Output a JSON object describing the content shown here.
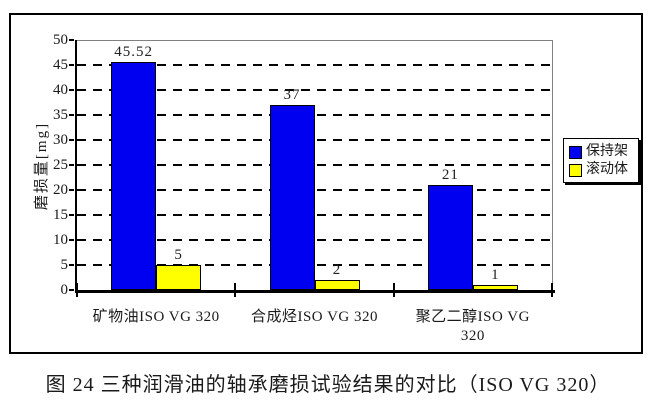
{
  "figure_caption": "图 24 三种润滑油的轴承磨损试验结果的对比（ISO VG 320）",
  "chart_data": {
    "type": "bar",
    "title": "",
    "xlabel": "",
    "ylabel": "磨损量[mg]",
    "ylim": [
      0,
      50
    ],
    "ytick_step": 5,
    "grid": "horizontal-dashed",
    "legend_position": "right",
    "categories": [
      "矿物油ISO VG 320",
      "合成烃ISO VG 320",
      "聚乙二醇ISO VG 320"
    ],
    "category_label_lines": [
      [
        "矿物油ISO VG 320"
      ],
      [
        "合成烃ISO VG 320"
      ],
      [
        "聚乙二醇ISO VG",
        "320"
      ]
    ],
    "series": [
      {
        "name": "保持架",
        "color": "#0000F0",
        "values": [
          45.52,
          37,
          21
        ],
        "value_labels": [
          "45.52",
          "37",
          "21"
        ]
      },
      {
        "name": "滚动体",
        "color": "#FFFF00",
        "values": [
          5,
          2,
          1
        ],
        "value_labels": [
          "5",
          "2",
          "1"
        ]
      }
    ]
  },
  "colors": {
    "frame_border": "#000000",
    "plot_border": "#808080",
    "axis": "#000000",
    "grid": "#000000",
    "background": "#FFFFFF"
  }
}
